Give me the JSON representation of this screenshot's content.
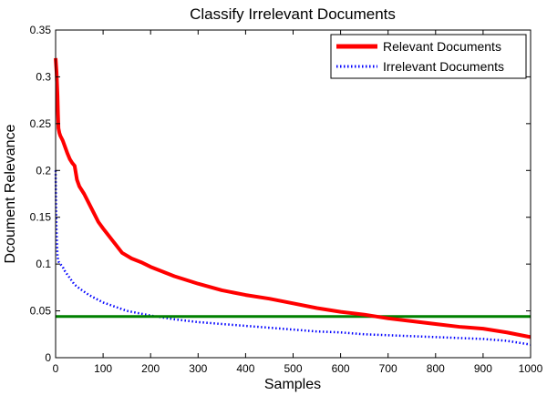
{
  "chart_data": {
    "type": "line",
    "title": "Classify Irrelevant Documents",
    "xlabel": "Samples",
    "ylabel": "Dcoument Relevance",
    "xlim": [
      0,
      1000
    ],
    "ylim": [
      0,
      0.35
    ],
    "xticks": [
      0,
      100,
      200,
      300,
      400,
      500,
      600,
      700,
      800,
      900,
      1000
    ],
    "yticks": [
      0,
      0.05,
      0.1,
      0.15,
      0.2,
      0.25,
      0.3,
      0.35
    ],
    "ytick_labels": [
      "0",
      "0.05",
      "0.1",
      "0.15",
      "0.2",
      "0.25",
      "0.3",
      "0.35"
    ],
    "grid": false,
    "legend_position": "top-right",
    "series": [
      {
        "name": "Relevant Documents",
        "color": "#ff0000",
        "style": "solid",
        "x": [
          0,
          2,
          4,
          5,
          6,
          8,
          10,
          15,
          20,
          25,
          30,
          35,
          40,
          45,
          50,
          60,
          70,
          80,
          90,
          100,
          120,
          140,
          160,
          180,
          200,
          250,
          300,
          350,
          400,
          450,
          500,
          550,
          600,
          650,
          700,
          750,
          800,
          850,
          900,
          950,
          1000
        ],
        "y": [
          0.32,
          0.305,
          0.28,
          0.26,
          0.245,
          0.24,
          0.237,
          0.232,
          0.225,
          0.218,
          0.212,
          0.208,
          0.205,
          0.19,
          0.183,
          0.175,
          0.165,
          0.155,
          0.145,
          0.138,
          0.125,
          0.112,
          0.106,
          0.102,
          0.097,
          0.087,
          0.079,
          0.072,
          0.067,
          0.063,
          0.058,
          0.053,
          0.049,
          0.046,
          0.042,
          0.039,
          0.036,
          0.033,
          0.031,
          0.027,
          0.022
        ]
      },
      {
        "name": "Irrelevant Documents",
        "color": "#0000ff",
        "style": "dotted",
        "x": [
          0,
          1,
          2,
          3,
          4,
          5,
          7,
          10,
          15,
          20,
          30,
          40,
          50,
          70,
          100,
          150,
          200,
          250,
          300,
          350,
          400,
          450,
          500,
          550,
          600,
          650,
          700,
          750,
          800,
          850,
          900,
          950,
          1000
        ],
        "y": [
          0.2,
          0.16,
          0.135,
          0.12,
          0.11,
          0.105,
          0.102,
          0.1,
          0.097,
          0.092,
          0.085,
          0.078,
          0.074,
          0.067,
          0.059,
          0.05,
          0.045,
          0.041,
          0.038,
          0.036,
          0.034,
          0.032,
          0.03,
          0.028,
          0.027,
          0.025,
          0.024,
          0.023,
          0.022,
          0.021,
          0.02,
          0.018,
          0.014
        ]
      },
      {
        "name": "",
        "color": "#008000",
        "style": "solid",
        "x": [
          0,
          1000
        ],
        "y": [
          0.044,
          0.044
        ]
      }
    ]
  }
}
